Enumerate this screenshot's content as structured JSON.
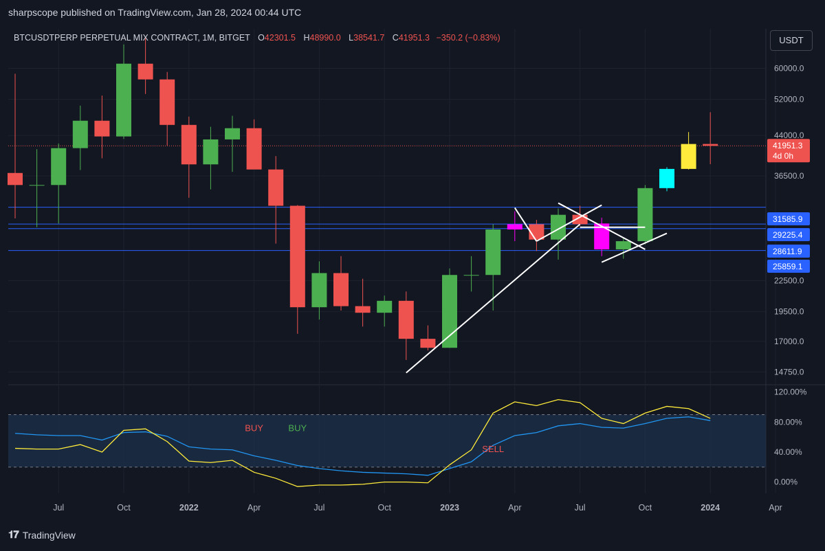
{
  "header": {
    "published": "sharpscope published on TradingView.com, Jan 28, 2024 00:44 UTC"
  },
  "legend": {
    "symbol": "BTCUSDTPERP PERPETUAL MIX CONTRACT, 1M, BITGET",
    "o_label": "O",
    "o_value": "42301.5",
    "h_label": "H",
    "h_value": "48990.0",
    "l_label": "L",
    "l_value": "38541.7",
    "c_label": "C",
    "c_value": "41951.3",
    "change": "−350.2 (−0.83%)"
  },
  "currency": "USDT",
  "footer": {
    "brand": "TradingView"
  },
  "colors": {
    "up": "#4caf50",
    "down": "#ef5350",
    "magenta": "#ff00ff",
    "cyan": "#00ffff",
    "yellow": "#ffeb3b",
    "line_blue": "#2962ff",
    "osc_blue": "#2196f3",
    "osc_yellow": "#ffeb3b"
  },
  "chart_data": [
    {
      "type": "candlestick",
      "timeframe": "1M",
      "y_scale": "log",
      "ylim": [
        14000,
        72000
      ],
      "y_ticks": [
        "60000.0",
        "52000.0",
        "44000.0",
        "36500.0",
        "22500.0",
        "19500.0",
        "17000.0",
        "14750.0"
      ],
      "x_ticks": [
        "Jul",
        "Oct",
        "2022",
        "Apr",
        "Jul",
        "Oct",
        "2023",
        "Apr",
        "Jul",
        "Oct",
        "2024",
        "Apr"
      ],
      "candles": [
        {
          "t": "2021-05",
          "o": 37000,
          "h": 58500,
          "l": 30000,
          "c": 35000
        },
        {
          "t": "2021-06",
          "o": 35000,
          "h": 41300,
          "l": 28800,
          "c": 35000
        },
        {
          "t": "2021-07",
          "o": 35000,
          "h": 42400,
          "l": 29300,
          "c": 41500
        },
        {
          "t": "2021-08",
          "o": 41500,
          "h": 50500,
          "l": 37500,
          "c": 47100
        },
        {
          "t": "2021-09",
          "o": 47100,
          "h": 52900,
          "l": 39600,
          "c": 43800
        },
        {
          "t": "2021-10",
          "o": 43800,
          "h": 67000,
          "l": 43300,
          "c": 61300
        },
        {
          "t": "2021-11",
          "o": 61300,
          "h": 69000,
          "l": 53300,
          "c": 57000
        },
        {
          "t": "2021-12",
          "o": 57000,
          "h": 59000,
          "l": 42000,
          "c": 46200
        },
        {
          "t": "2022-01",
          "o": 46200,
          "h": 48000,
          "l": 33000,
          "c": 38500
        },
        {
          "t": "2022-02",
          "o": 38500,
          "h": 45800,
          "l": 34300,
          "c": 43200
        },
        {
          "t": "2022-03",
          "o": 43200,
          "h": 48200,
          "l": 37200,
          "c": 45500
        },
        {
          "t": "2022-04",
          "o": 45500,
          "h": 47400,
          "l": 37700,
          "c": 37600
        },
        {
          "t": "2022-05",
          "o": 37600,
          "h": 40000,
          "l": 26700,
          "c": 31800
        },
        {
          "t": "2022-06",
          "o": 31800,
          "h": 31900,
          "l": 17600,
          "c": 19900
        },
        {
          "t": "2022-07",
          "o": 19900,
          "h": 24600,
          "l": 18800,
          "c": 23300
        },
        {
          "t": "2022-08",
          "o": 23300,
          "h": 25200,
          "l": 19600,
          "c": 20000
        },
        {
          "t": "2022-09",
          "o": 20000,
          "h": 22700,
          "l": 18200,
          "c": 19400
        },
        {
          "t": "2022-10",
          "o": 19400,
          "h": 21000,
          "l": 18200,
          "c": 20500
        },
        {
          "t": "2022-11",
          "o": 20500,
          "h": 21400,
          "l": 15600,
          "c": 17200
        },
        {
          "t": "2022-12",
          "o": 17200,
          "h": 18300,
          "l": 16300,
          "c": 16500
        },
        {
          "t": "2023-01",
          "o": 16500,
          "h": 23800,
          "l": 16500,
          "c": 23100
        },
        {
          "t": "2023-02",
          "o": 23100,
          "h": 25200,
          "l": 21400,
          "c": 23100
        },
        {
          "t": "2023-03",
          "o": 23100,
          "h": 29200,
          "l": 19600,
          "c": 28500
        },
        {
          "t": "2023-04",
          "o": 28500,
          "h": 31000,
          "l": 27000,
          "c": 29200
        },
        {
          "t": "2023-05",
          "o": 29200,
          "h": 29800,
          "l": 25800,
          "c": 27200
        },
        {
          "t": "2023-06",
          "o": 27200,
          "h": 31400,
          "l": 24800,
          "c": 30500
        },
        {
          "t": "2023-07",
          "o": 30500,
          "h": 31800,
          "l": 29000,
          "c": 29200
        },
        {
          "t": "2023-08",
          "o": 29300,
          "h": 30100,
          "l": 25200,
          "c": 26000
        },
        {
          "t": "2023-09",
          "o": 26000,
          "h": 27500,
          "l": 24900,
          "c": 27000
        },
        {
          "t": "2023-10",
          "o": 27000,
          "h": 35000,
          "l": 26600,
          "c": 34500
        },
        {
          "t": "2023-11",
          "o": 34500,
          "h": 38000,
          "l": 34000,
          "c": 37700
        },
        {
          "t": "2023-12",
          "o": 37700,
          "h": 44700,
          "l": 37600,
          "c": 42300
        },
        {
          "t": "2024-01",
          "o": 42301.5,
          "h": 48990.0,
          "l": 38541.7,
          "c": 41951.3
        }
      ],
      "highlighted_candles": {
        "2023-04": "magenta",
        "2023-08": "magenta",
        "2023-11": "cyan",
        "2023-12": "yellow"
      },
      "horizontal_levels": [
        31585.9,
        29225.4,
        28611.9,
        25859.1
      ],
      "level_labels": [
        "31585.9",
        "29225.4",
        "28611.9",
        "25859.1"
      ],
      "last_price_label": "41951.3",
      "countdown_label": "4d 0h",
      "trendlines": [
        {
          "from": {
            "t": "2022-11",
            "p": 14700
          },
          "to": {
            "t": "2023-07",
            "p": 29200
          }
        },
        {
          "from": {
            "t": "2023-04",
            "p": 31500
          },
          "to": {
            "t": "2023-05",
            "p": 27000
          }
        },
        {
          "from": {
            "t": "2023-05",
            "p": 27000
          },
          "to": {
            "t": "2023-08",
            "p": 31900
          }
        },
        {
          "from": {
            "t": "2023-06",
            "p": 32200
          },
          "to": {
            "t": "2023-10",
            "p": 26000
          }
        },
        {
          "from": {
            "t": "2023-07",
            "p": 28800
          },
          "to": {
            "t": "2023-10",
            "p": 28800
          }
        },
        {
          "from": {
            "t": "2023-08",
            "p": 24500
          },
          "to": {
            "t": "2023-11",
            "p": 28000
          }
        }
      ]
    },
    {
      "type": "line",
      "panel": "oscillator",
      "ylim": [
        -15,
        128
      ],
      "y_ticks": [
        "120.00%",
        "80.00%",
        "40.00%",
        "0.00%"
      ],
      "bands": [
        90,
        20
      ],
      "x": [
        "2021-05",
        "2021-06",
        "2021-07",
        "2021-08",
        "2021-09",
        "2021-10",
        "2021-11",
        "2021-12",
        "2022-01",
        "2022-02",
        "2022-03",
        "2022-04",
        "2022-05",
        "2022-06",
        "2022-07",
        "2022-08",
        "2022-09",
        "2022-10",
        "2022-11",
        "2022-12",
        "2023-01",
        "2023-02",
        "2023-03",
        "2023-04",
        "2023-05",
        "2023-06",
        "2023-07",
        "2023-08",
        "2023-09",
        "2023-10",
        "2023-11",
        "2023-12",
        "2024-01"
      ],
      "series": [
        {
          "color": "blue",
          "values": [
            65,
            63,
            62,
            62,
            56,
            66,
            67,
            61,
            47,
            44,
            43,
            35,
            29,
            22,
            18,
            15,
            13,
            12,
            11,
            9,
            18,
            27,
            49,
            62,
            66,
            75,
            78,
            73,
            72,
            78,
            85,
            87,
            82
          ]
        },
        {
          "color": "yellow",
          "values": [
            45,
            44,
            44,
            50,
            40,
            69,
            71,
            54,
            28,
            26,
            29,
            13,
            5,
            -6,
            -4,
            -4,
            -3,
            0,
            0,
            -1,
            23,
            43,
            92,
            107,
            102,
            110,
            106,
            85,
            78,
            92,
            101,
            98,
            85
          ]
        }
      ],
      "annotations": [
        {
          "text": "BUY",
          "color": "red",
          "t": "2022-04",
          "v": 68
        },
        {
          "text": "BUY",
          "color": "green",
          "t": "2022-06",
          "v": 68
        },
        {
          "text": "SELL",
          "color": "red",
          "t": "2023-03",
          "v": 40
        }
      ]
    }
  ]
}
